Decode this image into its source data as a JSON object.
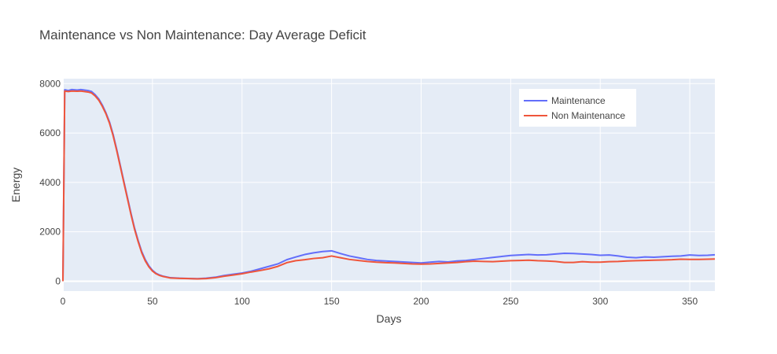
{
  "chart_data": {
    "type": "line",
    "title": "Maintenance vs Non Maintenance: Day Average Deficit",
    "xlabel": "Days",
    "ylabel": "Energy",
    "xlim": [
      0,
      364
    ],
    "ylim": [
      -400,
      8200
    ],
    "xticks": [
      0,
      50,
      100,
      150,
      200,
      250,
      300,
      350
    ],
    "yticks": [
      0,
      2000,
      4000,
      6000,
      8000
    ],
    "grid": true,
    "legend_position": "top-right",
    "background": "#e5ecf6",
    "series": [
      {
        "name": "Maintenance",
        "color": "#636efa",
        "x": [
          0,
          1,
          3,
          5,
          8,
          10,
          12,
          14,
          16,
          18,
          20,
          22,
          24,
          26,
          28,
          30,
          32,
          34,
          36,
          38,
          40,
          42,
          44,
          46,
          48,
          50,
          52,
          54,
          56,
          58,
          60,
          65,
          70,
          75,
          80,
          85,
          90,
          95,
          100,
          105,
          110,
          115,
          120,
          125,
          130,
          135,
          140,
          145,
          150,
          155,
          160,
          165,
          170,
          175,
          180,
          185,
          190,
          195,
          200,
          205,
          210,
          215,
          220,
          225,
          230,
          235,
          240,
          245,
          250,
          255,
          260,
          265,
          270,
          275,
          280,
          285,
          290,
          295,
          300,
          305,
          310,
          315,
          320,
          325,
          330,
          335,
          340,
          345,
          350,
          355,
          360,
          364
        ],
        "values": [
          0,
          7750,
          7720,
          7760,
          7740,
          7760,
          7740,
          7720,
          7680,
          7550,
          7380,
          7130,
          6820,
          6450,
          5950,
          5350,
          4700,
          4050,
          3400,
          2750,
          2150,
          1650,
          1200,
          870,
          620,
          440,
          320,
          250,
          200,
          170,
          140,
          120,
          110,
          100,
          120,
          160,
          230,
          280,
          330,
          400,
          500,
          600,
          700,
          870,
          980,
          1080,
          1150,
          1200,
          1230,
          1120,
          1020,
          950,
          880,
          840,
          820,
          800,
          780,
          760,
          740,
          770,
          800,
          780,
          820,
          840,
          880,
          920,
          960,
          1000,
          1040,
          1060,
          1080,
          1060,
          1070,
          1100,
          1130,
          1120,
          1100,
          1080,
          1050,
          1060,
          1020,
          970,
          950,
          980,
          970,
          990,
          1010,
          1020,
          1060,
          1040,
          1050,
          1070
        ]
      },
      {
        "name": "Non Maintenance",
        "color": "#ef553b",
        "x": [
          0,
          1,
          3,
          5,
          8,
          10,
          12,
          14,
          16,
          18,
          20,
          22,
          24,
          26,
          28,
          30,
          32,
          34,
          36,
          38,
          40,
          42,
          44,
          46,
          48,
          50,
          52,
          54,
          56,
          58,
          60,
          65,
          70,
          75,
          80,
          85,
          90,
          95,
          100,
          105,
          110,
          115,
          120,
          125,
          130,
          135,
          140,
          145,
          150,
          155,
          160,
          165,
          170,
          175,
          180,
          185,
          190,
          195,
          200,
          205,
          210,
          215,
          220,
          225,
          230,
          235,
          240,
          245,
          250,
          255,
          260,
          265,
          270,
          275,
          280,
          285,
          290,
          295,
          300,
          305,
          310,
          315,
          320,
          325,
          330,
          335,
          340,
          345,
          350,
          355,
          360,
          364
        ],
        "values": [
          0,
          7700,
          7680,
          7700,
          7690,
          7700,
          7680,
          7660,
          7620,
          7500,
          7330,
          7080,
          6780,
          6400,
          5900,
          5300,
          4650,
          4000,
          3350,
          2700,
          2100,
          1600,
          1150,
          820,
          580,
          410,
          300,
          230,
          190,
          160,
          130,
          115,
          105,
          95,
          105,
          140,
          200,
          250,
          300,
          370,
          430,
          500,
          600,
          750,
          830,
          870,
          920,
          950,
          1020,
          950,
          880,
          840,
          800,
          770,
          750,
          740,
          720,
          700,
          690,
          700,
          720,
          740,
          760,
          790,
          810,
          800,
          790,
          810,
          830,
          840,
          850,
          830,
          820,
          800,
          760,
          760,
          790,
          770,
          770,
          790,
          800,
          820,
          830,
          840,
          850,
          860,
          870,
          890,
          880,
          880,
          890,
          900
        ]
      }
    ]
  }
}
